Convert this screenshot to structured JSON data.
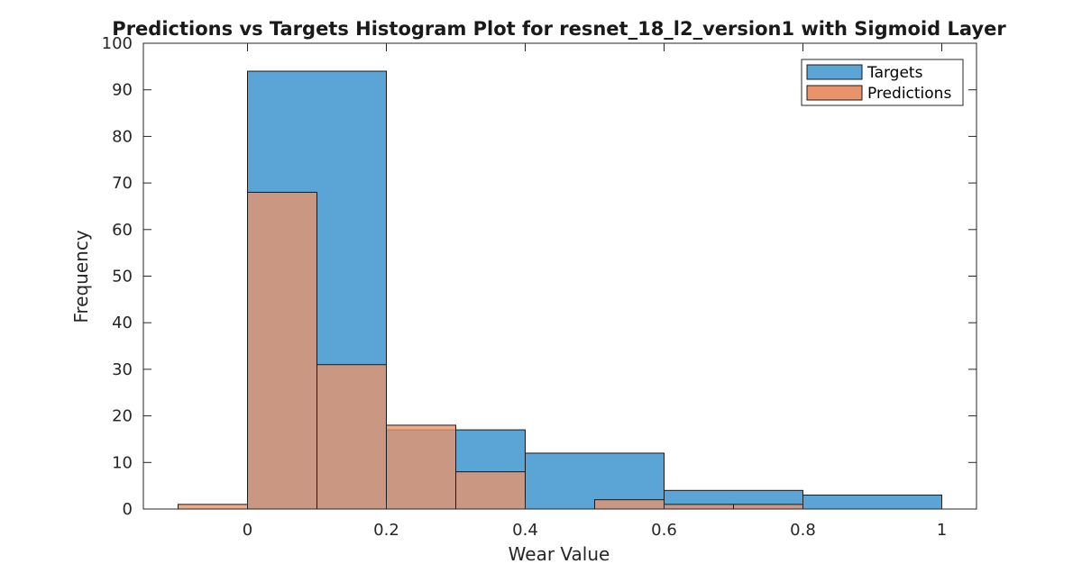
{
  "chart_data": {
    "type": "bar",
    "title": "Predictions vs Targets Histogram Plot for resnet_18_l2_version1 with Sigmoid Layer",
    "xlabel": "Wear Value",
    "ylabel": "Frequency",
    "xlim": [
      -0.15,
      1.05
    ],
    "ylim": [
      0,
      100
    ],
    "xticks": [
      0,
      0.2,
      0.4,
      0.6,
      0.8,
      1
    ],
    "xtick_labels": [
      "0",
      "0.2",
      "0.4",
      "0.6",
      "0.8",
      "1"
    ],
    "yticks": [
      0,
      10,
      20,
      30,
      40,
      50,
      60,
      70,
      80,
      90,
      100
    ],
    "ytick_labels": [
      "0",
      "10",
      "20",
      "30",
      "40",
      "50",
      "60",
      "70",
      "80",
      "90",
      "100"
    ],
    "legend_position": "top-right",
    "grid": false,
    "series": [
      {
        "name": "Targets",
        "color": "#5ba4d6",
        "bins": [
          {
            "x0": 0,
            "x1": 0.2,
            "count": 94
          },
          {
            "x0": 0.2,
            "x1": 0.4,
            "count": 17
          },
          {
            "x0": 0.4,
            "x1": 0.6,
            "count": 12
          },
          {
            "x0": 0.6,
            "x1": 0.8,
            "count": 4
          },
          {
            "x0": 0.8,
            "x1": 1.0,
            "count": 3
          }
        ]
      },
      {
        "name": "Predictions",
        "color": "#e8936a",
        "bins": [
          {
            "x0": -0.1,
            "x1": 0,
            "count": 1
          },
          {
            "x0": 0,
            "x1": 0.1,
            "count": 68
          },
          {
            "x0": 0.1,
            "x1": 0.2,
            "count": 31
          },
          {
            "x0": 0.2,
            "x1": 0.3,
            "count": 18
          },
          {
            "x0": 0.3,
            "x1": 0.4,
            "count": 8
          },
          {
            "x0": 0.4,
            "x1": 0.5,
            "count": 0
          },
          {
            "x0": 0.5,
            "x1": 0.6,
            "count": 2
          },
          {
            "x0": 0.6,
            "x1": 0.7,
            "count": 1
          },
          {
            "x0": 0.7,
            "x1": 0.8,
            "count": 1
          }
        ]
      }
    ],
    "overlap_color": "#a87561"
  }
}
